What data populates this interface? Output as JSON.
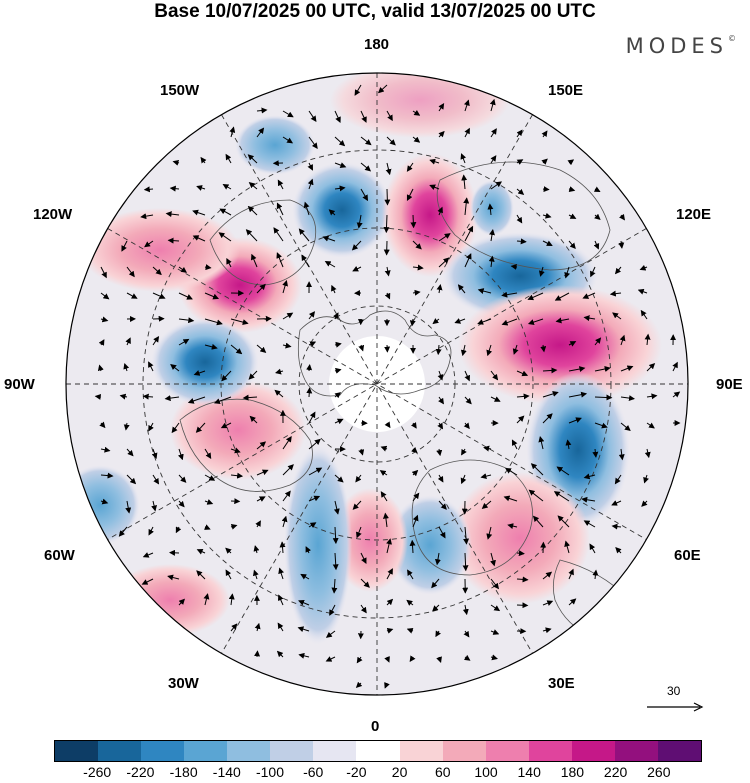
{
  "title": "Base 10/07/2025 00 UTC, valid 13/07/2025 00 UTC",
  "logo": "MODES",
  "logo_mark": "©",
  "longitude_labels": {
    "top": "180",
    "bottom": "0",
    "left": "90W",
    "right": "90E",
    "upper_left_1": "150W",
    "upper_left_2": "120W",
    "upper_right_1": "150E",
    "upper_right_2": "120E",
    "lower_left_1": "60W",
    "lower_left_2": "30W",
    "lower_right_1": "60E",
    "lower_right_2": "30E"
  },
  "reference_vector": {
    "label": "30"
  },
  "colorbar": {
    "colors": [
      "#0d3d66",
      "#18669b",
      "#2f86c1",
      "#5aa5d3",
      "#8fbee0",
      "#c0cfe6",
      "#e6e6f2",
      "#ffffff",
      "#f9d3d6",
      "#f3aab9",
      "#ee7fae",
      "#e0449d",
      "#c51888",
      "#93107e",
      "#5f0e73"
    ],
    "tick_labels": [
      "-260",
      "-220",
      "-180",
      "-140",
      "-100",
      "-60",
      "-20",
      "20",
      "60",
      "100",
      "140",
      "180",
      "220",
      "260"
    ]
  },
  "anomaly_centers": [
    {
      "sign": "negative",
      "strength": 3
    },
    {
      "sign": "negative",
      "strength": 4
    },
    {
      "sign": "positive",
      "strength": 4
    },
    {
      "sign": "negative",
      "strength": 3
    },
    {
      "sign": "negative",
      "strength": 4
    },
    {
      "sign": "positive",
      "strength": 4
    },
    {
      "sign": "negative",
      "strength": 4
    },
    {
      "sign": "positive",
      "strength": 3
    },
    {
      "sign": "negative",
      "strength": 3
    },
    {
      "sign": "positive",
      "strength": 3
    },
    {
      "sign": "negative",
      "strength": 4
    },
    {
      "sign": "positive",
      "strength": 3
    },
    {
      "sign": "positive",
      "strength": 3
    },
    {
      "sign": "negative",
      "strength": 2
    },
    {
      "sign": "positive",
      "strength": 2
    }
  ]
}
